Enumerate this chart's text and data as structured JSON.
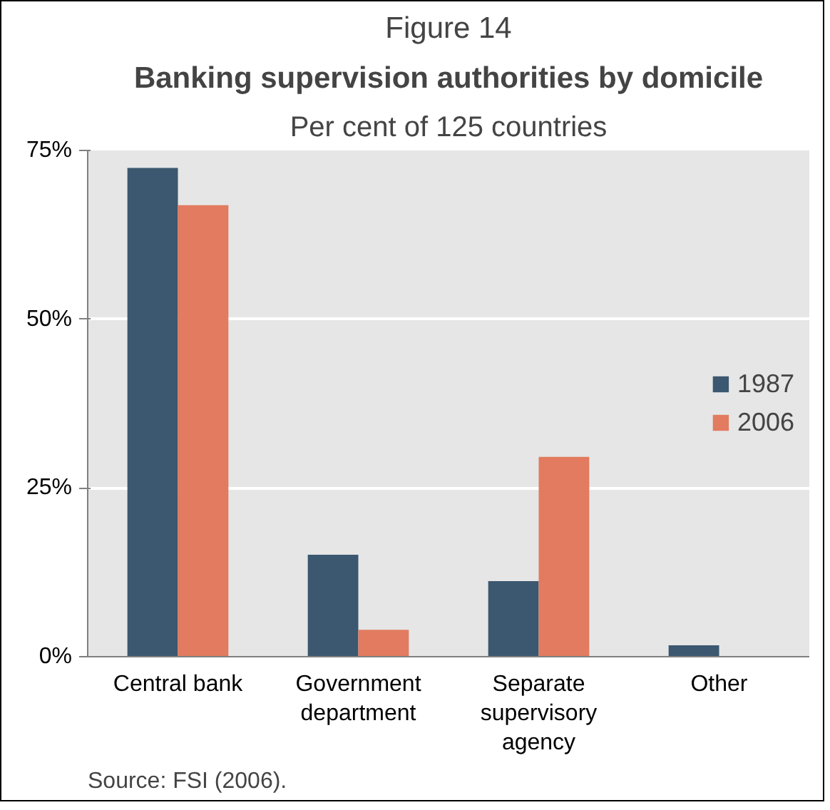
{
  "chart_data": {
    "type": "bar",
    "title": "Figure 14",
    "subtitle": "Banking supervision authorities by domicile",
    "annotations": [
      "Per cent of 125 countries",
      "Source: FSI (2006)."
    ],
    "categories": [
      "Central bank",
      "Government department",
      "Separate supervisory agency",
      "Other"
    ],
    "series": [
      {
        "name": "1987",
        "color": "#3b5870",
        "values": [
          72.4,
          15.1,
          11.2,
          1.7
        ]
      },
      {
        "name": "2006",
        "color": "#e27b5f",
        "values": [
          66.9,
          4.0,
          29.6,
          0
        ]
      }
    ],
    "ylim": [
      0,
      75
    ],
    "yticks": [
      {
        "value": 0,
        "label": "0%"
      },
      {
        "value": 25,
        "label": "25%"
      },
      {
        "value": 50,
        "label": "50%"
      },
      {
        "value": 75,
        "label": "75%"
      }
    ],
    "grid": "y",
    "legend": "right"
  }
}
